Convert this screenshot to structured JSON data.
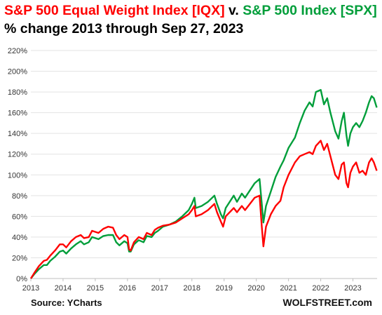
{
  "title": {
    "part1": "S&P 500 Equal Weight Index [IQX]",
    "sep": " v. ",
    "part2": "S&P 500 Index [SPX]"
  },
  "subtitle": "% change 2013 through  Sep 27, 2023",
  "source": "Source: YCharts",
  "brand": "WOLFSTREET.com",
  "colors": {
    "iqx": "#ff0000",
    "spx": "#009e3a",
    "grid": "#e3e3e3",
    "axis": "#bfbfbf"
  },
  "chart_data": {
    "type": "line",
    "ylim": [
      0,
      220
    ],
    "yticks": [
      0,
      20,
      40,
      60,
      80,
      100,
      120,
      140,
      160,
      180,
      200,
      220
    ],
    "ytick_labels": [
      "0%",
      "20%",
      "40%",
      "60%",
      "80%",
      "100%",
      "120%",
      "140%",
      "160%",
      "180%",
      "200%",
      "220%"
    ],
    "xlim": [
      2013,
      2023.75
    ],
    "xticks": [
      2013,
      2014,
      2015,
      2016,
      2017,
      2018,
      2019,
      2020,
      2021,
      2022,
      2023
    ],
    "xtick_labels": [
      "2013",
      "2014",
      "2015",
      "2016",
      "2017",
      "2018",
      "2019",
      "2020",
      "2021",
      "2022",
      "2023"
    ],
    "grid": true,
    "series": [
      {
        "name": "S&P 500 Equal Weight Index [IQX]",
        "color": "#ff0000",
        "points": [
          [
            2013.0,
            0
          ],
          [
            2013.1,
            5
          ],
          [
            2013.25,
            12
          ],
          [
            2013.4,
            17
          ],
          [
            2013.5,
            18
          ],
          [
            2013.6,
            22
          ],
          [
            2013.75,
            27
          ],
          [
            2013.9,
            33
          ],
          [
            2014.0,
            33
          ],
          [
            2014.1,
            30
          ],
          [
            2014.25,
            36
          ],
          [
            2014.4,
            40
          ],
          [
            2014.55,
            42
          ],
          [
            2014.65,
            39
          ],
          [
            2014.8,
            40
          ],
          [
            2014.9,
            46
          ],
          [
            2015.0,
            45
          ],
          [
            2015.1,
            44
          ],
          [
            2015.25,
            48
          ],
          [
            2015.4,
            50
          ],
          [
            2015.55,
            49
          ],
          [
            2015.65,
            42
          ],
          [
            2015.75,
            38
          ],
          [
            2015.9,
            42
          ],
          [
            2016.0,
            40
          ],
          [
            2016.05,
            28
          ],
          [
            2016.1,
            27
          ],
          [
            2016.2,
            35
          ],
          [
            2016.35,
            40
          ],
          [
            2016.5,
            38
          ],
          [
            2016.6,
            44
          ],
          [
            2016.75,
            42
          ],
          [
            2016.85,
            47
          ],
          [
            2016.95,
            49
          ],
          [
            2017.1,
            51
          ],
          [
            2017.3,
            52
          ],
          [
            2017.5,
            54
          ],
          [
            2017.7,
            58
          ],
          [
            2017.9,
            62
          ],
          [
            2018.0,
            66
          ],
          [
            2018.08,
            70
          ],
          [
            2018.12,
            60
          ],
          [
            2018.3,
            62
          ],
          [
            2018.5,
            66
          ],
          [
            2018.7,
            72
          ],
          [
            2018.78,
            64
          ],
          [
            2018.9,
            55
          ],
          [
            2018.97,
            50
          ],
          [
            2019.05,
            60
          ],
          [
            2019.3,
            68
          ],
          [
            2019.4,
            64
          ],
          [
            2019.55,
            70
          ],
          [
            2019.65,
            66
          ],
          [
            2019.8,
            72
          ],
          [
            2019.95,
            78
          ],
          [
            2020.1,
            80
          ],
          [
            2020.17,
            50
          ],
          [
            2020.22,
            31
          ],
          [
            2020.3,
            50
          ],
          [
            2020.45,
            62
          ],
          [
            2020.6,
            70
          ],
          [
            2020.75,
            75
          ],
          [
            2020.85,
            88
          ],
          [
            2021.0,
            100
          ],
          [
            2021.2,
            112
          ],
          [
            2021.35,
            118
          ],
          [
            2021.5,
            120
          ],
          [
            2021.65,
            122
          ],
          [
            2021.75,
            120
          ],
          [
            2021.85,
            128
          ],
          [
            2022.0,
            133
          ],
          [
            2022.1,
            124
          ],
          [
            2022.2,
            130
          ],
          [
            2022.3,
            118
          ],
          [
            2022.45,
            100
          ],
          [
            2022.55,
            96
          ],
          [
            2022.65,
            110
          ],
          [
            2022.72,
            112
          ],
          [
            2022.8,
            92
          ],
          [
            2022.85,
            88
          ],
          [
            2022.92,
            102
          ],
          [
            2023.0,
            108
          ],
          [
            2023.1,
            112
          ],
          [
            2023.2,
            102
          ],
          [
            2023.3,
            104
          ],
          [
            2023.4,
            100
          ],
          [
            2023.5,
            112
          ],
          [
            2023.58,
            116
          ],
          [
            2023.65,
            112
          ],
          [
            2023.74,
            104
          ]
        ]
      },
      {
        "name": "S&P 500 Index [SPX]",
        "color": "#009e3a",
        "points": [
          [
            2013.0,
            0
          ],
          [
            2013.1,
            4
          ],
          [
            2013.25,
            9
          ],
          [
            2013.4,
            13
          ],
          [
            2013.5,
            13
          ],
          [
            2013.6,
            17
          ],
          [
            2013.75,
            21
          ],
          [
            2013.9,
            26
          ],
          [
            2014.0,
            27
          ],
          [
            2014.1,
            24
          ],
          [
            2014.25,
            29
          ],
          [
            2014.4,
            33
          ],
          [
            2014.55,
            36
          ],
          [
            2014.65,
            33
          ],
          [
            2014.8,
            35
          ],
          [
            2014.9,
            40
          ],
          [
            2015.0,
            39
          ],
          [
            2015.1,
            38
          ],
          [
            2015.25,
            41
          ],
          [
            2015.4,
            42
          ],
          [
            2015.55,
            42
          ],
          [
            2015.65,
            35
          ],
          [
            2015.75,
            32
          ],
          [
            2015.9,
            36
          ],
          [
            2016.0,
            34
          ],
          [
            2016.05,
            26
          ],
          [
            2016.1,
            26
          ],
          [
            2016.2,
            33
          ],
          [
            2016.35,
            37
          ],
          [
            2016.5,
            35
          ],
          [
            2016.6,
            41
          ],
          [
            2016.75,
            40
          ],
          [
            2016.85,
            44
          ],
          [
            2016.95,
            46
          ],
          [
            2017.1,
            50
          ],
          [
            2017.3,
            52
          ],
          [
            2017.5,
            55
          ],
          [
            2017.7,
            60
          ],
          [
            2017.9,
            66
          ],
          [
            2018.0,
            72
          ],
          [
            2018.08,
            78
          ],
          [
            2018.12,
            68
          ],
          [
            2018.3,
            70
          ],
          [
            2018.5,
            74
          ],
          [
            2018.7,
            80
          ],
          [
            2018.78,
            72
          ],
          [
            2018.9,
            62
          ],
          [
            2018.97,
            58
          ],
          [
            2019.05,
            68
          ],
          [
            2019.3,
            80
          ],
          [
            2019.4,
            74
          ],
          [
            2019.55,
            82
          ],
          [
            2019.65,
            78
          ],
          [
            2019.8,
            85
          ],
          [
            2019.95,
            92
          ],
          [
            2020.1,
            96
          ],
          [
            2020.17,
            72
          ],
          [
            2020.22,
            54
          ],
          [
            2020.3,
            70
          ],
          [
            2020.45,
            84
          ],
          [
            2020.6,
            98
          ],
          [
            2020.75,
            108
          ],
          [
            2020.85,
            114
          ],
          [
            2021.0,
            126
          ],
          [
            2021.2,
            136
          ],
          [
            2021.35,
            150
          ],
          [
            2021.5,
            162
          ],
          [
            2021.65,
            170
          ],
          [
            2021.75,
            166
          ],
          [
            2021.85,
            180
          ],
          [
            2022.0,
            182
          ],
          [
            2022.1,
            168
          ],
          [
            2022.2,
            174
          ],
          [
            2022.3,
            160
          ],
          [
            2022.45,
            142
          ],
          [
            2022.55,
            135
          ],
          [
            2022.65,
            152
          ],
          [
            2022.72,
            160
          ],
          [
            2022.8,
            138
          ],
          [
            2022.85,
            128
          ],
          [
            2022.92,
            140
          ],
          [
            2023.0,
            146
          ],
          [
            2023.1,
            150
          ],
          [
            2023.2,
            146
          ],
          [
            2023.3,
            152
          ],
          [
            2023.4,
            160
          ],
          [
            2023.5,
            170
          ],
          [
            2023.58,
            176
          ],
          [
            2023.65,
            174
          ],
          [
            2023.74,
            165
          ]
        ]
      }
    ]
  }
}
